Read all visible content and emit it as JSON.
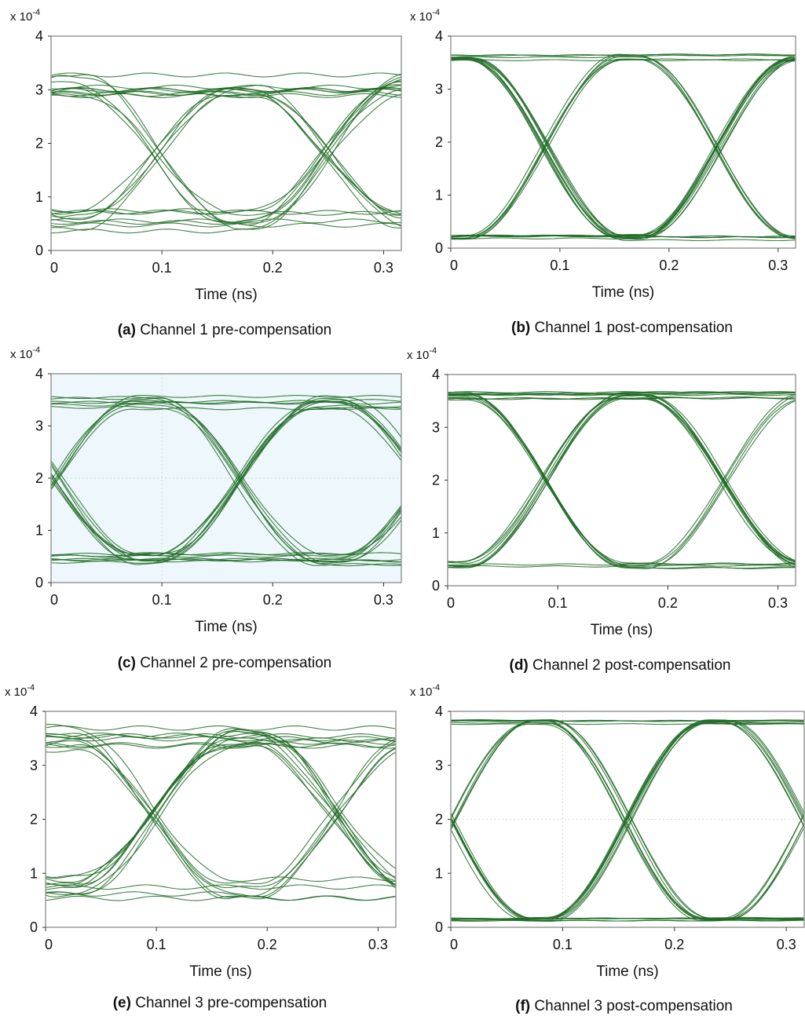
{
  "style": {
    "trace_color": "#1e6b24",
    "frame_color": "#999999",
    "tinted_bg": "#eef7fb"
  },
  "chart_data": [
    {
      "type": "line",
      "subtype": "eye-diagram",
      "label": "(a)",
      "caption": "Channel 1 pre-compensation",
      "xlabel": "Time (ns)",
      "ylabel": "",
      "y_multiplier": "x 10",
      "y_multiplier_exp": "-4",
      "xlim": [
        0,
        0.316
      ],
      "ylim": [
        0,
        4
      ],
      "xticks": [
        "0",
        "0.1",
        "0.2",
        "0.3"
      ],
      "xtick_values": [
        0,
        0.1,
        0.2,
        0.3
      ],
      "yticks": [
        "0",
        "1",
        "2",
        "3",
        "4"
      ],
      "high_level": 3.1,
      "low_level": 0.55,
      "crossings_ns": [
        0.095,
        0.25
      ],
      "crossing_level": 1.85,
      "spread": 0.45,
      "grid": false
    },
    {
      "type": "line",
      "subtype": "eye-diagram",
      "label": "(b)",
      "caption": "Channel 1 post-compensation",
      "xlabel": "Time (ns)",
      "ylabel": "",
      "y_multiplier": "x 10",
      "y_multiplier_exp": "-4",
      "xlim": [
        0,
        0.316
      ],
      "ylim": [
        0,
        4
      ],
      "xticks": [
        "0",
        "0.1",
        "0.2",
        "0.3"
      ],
      "xtick_values": [
        0,
        0.1,
        0.2,
        0.3
      ],
      "yticks": [
        "0",
        "1",
        "2",
        "3",
        "4"
      ],
      "high_level": 3.6,
      "low_level": 0.2,
      "crossings_ns": [
        0.087,
        0.245
      ],
      "crossing_level": 1.85,
      "spread": 0.12,
      "grid": false
    },
    {
      "type": "line",
      "subtype": "eye-diagram",
      "label": "(c)",
      "caption": "Channel 2 pre-compensation",
      "xlabel": "Time (ns)",
      "ylabel": "",
      "y_multiplier": "x 10",
      "y_multiplier_exp": "-4",
      "xlim": [
        0,
        0.316
      ],
      "ylim": [
        0,
        4
      ],
      "xticks": [
        "0",
        "0.1",
        "0.2",
        "0.3"
      ],
      "xtick_values": [
        0,
        0.1,
        0.2,
        0.3
      ],
      "yticks": [
        "0",
        "1",
        "2",
        "3",
        "4"
      ],
      "high_level": 3.45,
      "low_level": 0.45,
      "crossings_ns": [
        0.005,
        0.17
      ],
      "crossing_level": 1.95,
      "spread": 0.25,
      "grid": true,
      "tinted": true
    },
    {
      "type": "line",
      "subtype": "eye-diagram",
      "label": "(d)",
      "caption": "Channel 2 post-compensation",
      "xlabel": "Time (ns)",
      "ylabel": "",
      "y_multiplier": "x 10",
      "y_multiplier_exp": "-4",
      "xlim": [
        0,
        0.316
      ],
      "ylim": [
        0,
        4
      ],
      "xticks": [
        "0",
        "0.1",
        "0.2",
        "0.3"
      ],
      "xtick_values": [
        0,
        0.1,
        0.2,
        0.3
      ],
      "yticks": [
        "0",
        "1",
        "2",
        "3",
        "4"
      ],
      "high_level": 3.6,
      "low_level": 0.4,
      "crossings_ns": [
        0.088,
        0.25
      ],
      "crossing_level": 2.0,
      "spread": 0.15,
      "grid": false
    },
    {
      "type": "line",
      "subtype": "eye-diagram",
      "label": "(e)",
      "caption": "Channel 3 pre-compensation",
      "xlabel": "Time (ns)",
      "ylabel": "",
      "y_multiplier": "x 10",
      "y_multiplier_exp": "-4",
      "xlim": [
        0,
        0.316
      ],
      "ylim": [
        0,
        4
      ],
      "xticks": [
        "0",
        "0.1",
        "0.2",
        "0.3"
      ],
      "xtick_values": [
        0,
        0.1,
        0.2,
        0.3
      ],
      "yticks": [
        "0",
        "1",
        "2",
        "3",
        "4"
      ],
      "high_level": 3.5,
      "low_level": 0.75,
      "crossings_ns": [
        0.098,
        0.26
      ],
      "crossing_level": 2.0,
      "spread": 0.5,
      "grid": false
    },
    {
      "type": "line",
      "subtype": "eye-diagram",
      "label": "(f)",
      "caption": "Channel 3 post-compensation",
      "xlabel": "Time (ns)",
      "ylabel": "",
      "y_multiplier": "x 10",
      "y_multiplier_exp": "-4",
      "xlim": [
        0,
        0.316
      ],
      "ylim": [
        0,
        4
      ],
      "xticks": [
        "0",
        "0.1",
        "0.2",
        "0.3"
      ],
      "xtick_values": [
        0,
        0.1,
        0.2,
        0.3
      ],
      "yticks": [
        "0",
        "1",
        "2",
        "3",
        "4"
      ],
      "high_level": 3.8,
      "low_level": 0.15,
      "crossings_ns": [
        0.0,
        0.158,
        0.316
      ],
      "crossing_level": 1.95,
      "spread": 0.08,
      "grid": true
    }
  ]
}
